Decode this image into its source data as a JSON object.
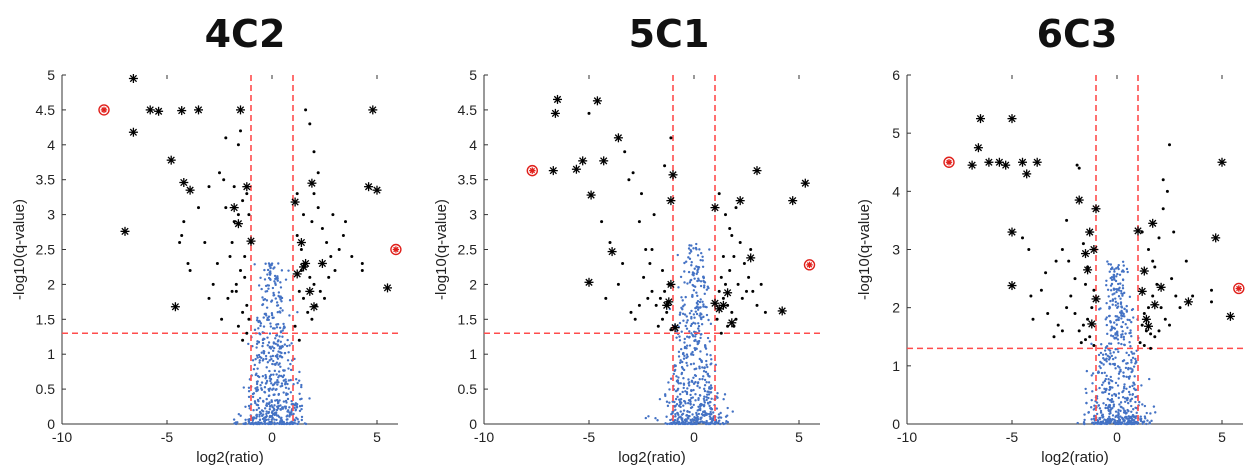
{
  "chart_data": [
    {
      "type": "scatter",
      "title": "4C2",
      "xlabel": "log2(ratio)",
      "ylabel": "-log10(q-value)",
      "xlim": [
        -10,
        6
      ],
      "ylim": [
        0,
        5
      ],
      "xticks": [
        "-10",
        "-5",
        "0",
        "5"
      ],
      "yticks": [
        "0",
        "0.5",
        "1",
        "1.5",
        "2",
        "2.5",
        "3",
        "3.5",
        "4",
        "4.5",
        "5"
      ],
      "threshold_lines": {
        "x": [
          -1,
          1
        ],
        "y": 1.3,
        "color": "#ff4d4d"
      },
      "colors": {
        "background": "#4472c4",
        "significant": "#000000",
        "highlight": "#e0201b"
      },
      "background_cloud": {
        "x_center": 0,
        "y_max": 2.3,
        "n": 600,
        "seed": 11
      },
      "significant_dots": [
        [
          -1.2,
          3.3
        ],
        [
          -1.4,
          3.2
        ],
        [
          -1.6,
          3.0
        ],
        [
          -1.8,
          2.9
        ],
        [
          -2.2,
          3.1
        ],
        [
          -1.0,
          2.6
        ],
        [
          -1.3,
          2.4
        ],
        [
          -1.5,
          2.2
        ],
        [
          -1.7,
          2.0
        ],
        [
          -1.9,
          1.9
        ],
        [
          -2.1,
          1.8
        ],
        [
          -1.2,
          1.7
        ],
        [
          -1.4,
          1.6
        ],
        [
          -1.1,
          1.5
        ],
        [
          -1.6,
          1.4
        ],
        [
          -2.4,
          1.5
        ],
        [
          -2.6,
          2.3
        ],
        [
          -2.8,
          2.0
        ],
        [
          -3.0,
          1.8
        ],
        [
          -3.2,
          2.6
        ],
        [
          -4.0,
          2.3
        ],
        [
          -3.9,
          2.2
        ],
        [
          -4.2,
          2.9
        ],
        [
          -4.3,
          2.7
        ],
        [
          -4.4,
          2.6
        ],
        [
          -2.2,
          4.1
        ],
        [
          -1.5,
          4.2
        ],
        [
          -1.6,
          4.0
        ],
        [
          -2.5,
          3.6
        ],
        [
          -2.3,
          3.5
        ],
        [
          -1.8,
          3.4
        ],
        [
          -3.0,
          3.4
        ],
        [
          -3.5,
          3.1
        ],
        [
          -1.1,
          3.0
        ],
        [
          -1.3,
          2.1
        ],
        [
          -1.9,
          2.6
        ],
        [
          -2.0,
          2.4
        ],
        [
          -1.2,
          1.3
        ],
        [
          -1.4,
          1.2
        ],
        [
          -1.7,
          1.9
        ],
        [
          1.2,
          2.7
        ],
        [
          1.4,
          2.5
        ],
        [
          1.6,
          2.3
        ],
        [
          1.8,
          2.1
        ],
        [
          2.0,
          2.0
        ],
        [
          1.3,
          1.9
        ],
        [
          1.5,
          1.8
        ],
        [
          1.7,
          1.6
        ],
        [
          1.9,
          1.5
        ],
        [
          2.1,
          1.7
        ],
        [
          2.3,
          1.9
        ],
        [
          1.1,
          1.4
        ],
        [
          1.2,
          3.3
        ],
        [
          1.5,
          3.0
        ],
        [
          2.0,
          3.3
        ],
        [
          2.2,
          3.1
        ],
        [
          2.4,
          2.8
        ],
        [
          2.6,
          2.6
        ],
        [
          2.8,
          2.4
        ],
        [
          3.0,
          2.2
        ],
        [
          3.2,
          2.5
        ],
        [
          3.4,
          2.7
        ],
        [
          1.6,
          4.5
        ],
        [
          1.8,
          4.3
        ],
        [
          2.0,
          3.9
        ],
        [
          2.2,
          3.6
        ],
        [
          1.4,
          2.2
        ],
        [
          1.3,
          1.2
        ],
        [
          2.5,
          1.8
        ],
        [
          2.7,
          2.1
        ],
        [
          3.5,
          2.9
        ],
        [
          4.3,
          2.3
        ],
        [
          4.3,
          2.2
        ],
        [
          1.9,
          2.9
        ],
        [
          2.9,
          3.0
        ],
        [
          3.8,
          2.4
        ]
      ],
      "significant_stars": [
        [
          -6.6,
          4.95
        ],
        [
          -5.8,
          4.5
        ],
        [
          -5.4,
          4.48
        ],
        [
          -4.3,
          4.49
        ],
        [
          -3.5,
          4.5
        ],
        [
          -1.5,
          4.5
        ],
        [
          -6.6,
          4.18
        ],
        [
          -4.8,
          3.78
        ],
        [
          -4.2,
          3.46
        ],
        [
          -3.9,
          3.35
        ],
        [
          -7.0,
          2.76
        ],
        [
          -4.6,
          1.68
        ],
        [
          -1.2,
          3.4
        ],
        [
          -1.8,
          3.1
        ],
        [
          -1.6,
          2.87
        ],
        [
          -1.0,
          2.62
        ],
        [
          1.1,
          3.18
        ],
        [
          1.9,
          3.45
        ],
        [
          1.4,
          2.6
        ],
        [
          1.2,
          2.15
        ],
        [
          1.6,
          2.3
        ],
        [
          2.4,
          2.3
        ],
        [
          1.8,
          1.9
        ],
        [
          2.0,
          1.68
        ],
        [
          4.8,
          4.5
        ],
        [
          4.6,
          3.4
        ],
        [
          5.0,
          3.35
        ],
        [
          5.5,
          1.95
        ],
        [
          1.5,
          2.25
        ]
      ],
      "highlight_points": [
        [
          -8.0,
          4.5
        ],
        [
          5.9,
          2.5
        ]
      ]
    },
    {
      "type": "scatter",
      "title": "5C1",
      "xlabel": "log2(ratio)",
      "ylabel": "-log10(q-value)",
      "xlim": [
        -10,
        6
      ],
      "ylim": [
        0,
        5
      ],
      "xticks": [
        "-10",
        "-5",
        "0",
        "5"
      ],
      "yticks": [
        "0",
        "0.5",
        "1",
        "1.5",
        "2",
        "2.5",
        "3",
        "3.5",
        "4",
        "4.5",
        "5"
      ],
      "threshold_lines": {
        "x": [
          -1,
          1
        ],
        "y": 1.3,
        "color": "#ff4d4d"
      },
      "colors": {
        "background": "#4472c4",
        "significant": "#000000",
        "highlight": "#e0201b"
      },
      "background_cloud": {
        "x_center": 0,
        "y_max": 2.6,
        "n": 600,
        "seed": 23
      },
      "significant_dots": [
        [
          -1.2,
          2.0
        ],
        [
          -1.4,
          1.9
        ],
        [
          -1.6,
          1.8
        ],
        [
          -1.8,
          1.7
        ],
        [
          -2.0,
          1.9
        ],
        [
          -2.2,
          1.8
        ],
        [
          -2.4,
          2.1
        ],
        [
          -1.3,
          1.6
        ],
        [
          -1.5,
          1.5
        ],
        [
          -1.7,
          1.4
        ],
        [
          -1.1,
          1.35
        ],
        [
          -2.6,
          1.7
        ],
        [
          -2.8,
          1.5
        ],
        [
          -3.0,
          1.6
        ],
        [
          -2.1,
          2.3
        ],
        [
          -2.3,
          2.5
        ],
        [
          -3.4,
          2.3
        ],
        [
          -3.6,
          2.0
        ],
        [
          -4.2,
          1.8
        ],
        [
          -4.0,
          2.6
        ],
        [
          -4.4,
          2.9
        ],
        [
          -5.0,
          4.45
        ],
        [
          -3.3,
          3.9
        ],
        [
          -2.9,
          3.6
        ],
        [
          -3.1,
          3.5
        ],
        [
          -2.5,
          3.3
        ],
        [
          -1.9,
          3.0
        ],
        [
          -2.6,
          2.9
        ],
        [
          -1.1,
          4.1
        ],
        [
          -1.4,
          3.7
        ],
        [
          -2.0,
          2.5
        ],
        [
          -1.5,
          2.2
        ],
        [
          1.2,
          1.9
        ],
        [
          1.4,
          1.8
        ],
        [
          1.6,
          1.7
        ],
        [
          1.8,
          1.6
        ],
        [
          2.0,
          1.5
        ],
        [
          1.3,
          2.1
        ],
        [
          1.5,
          2.0
        ],
        [
          1.7,
          2.2
        ],
        [
          1.9,
          2.4
        ],
        [
          2.1,
          2.0
        ],
        [
          2.3,
          1.8
        ],
        [
          2.5,
          1.9
        ],
        [
          1.1,
          1.5
        ],
        [
          1.2,
          3.3
        ],
        [
          1.5,
          3.0
        ],
        [
          1.7,
          2.8
        ],
        [
          2.0,
          3.1
        ],
        [
          2.2,
          2.6
        ],
        [
          2.4,
          2.3
        ],
        [
          2.6,
          2.1
        ],
        [
          2.8,
          1.9
        ],
        [
          3.0,
          1.7
        ],
        [
          3.2,
          2.0
        ],
        [
          1.3,
          1.3
        ],
        [
          1.6,
          1.4
        ],
        [
          1.8,
          2.7
        ],
        [
          2.7,
          2.5
        ],
        [
          3.4,
          1.6
        ],
        [
          1.4,
          2.4
        ],
        [
          1.9,
          1.4
        ]
      ],
      "significant_stars": [
        [
          -6.5,
          4.65
        ],
        [
          -4.6,
          4.63
        ],
        [
          -6.6,
          4.45
        ],
        [
          -3.6,
          4.1
        ],
        [
          -5.3,
          3.77
        ],
        [
          -4.3,
          3.77
        ],
        [
          -6.7,
          3.63
        ],
        [
          -5.6,
          3.65
        ],
        [
          -4.9,
          3.28
        ],
        [
          -1.0,
          3.57
        ],
        [
          -1.1,
          3.2
        ],
        [
          -3.9,
          2.47
        ],
        [
          -5.0,
          2.03
        ],
        [
          -1.1,
          2.0
        ],
        [
          -1.2,
          1.75
        ],
        [
          -0.9,
          1.38
        ],
        [
          -1.3,
          1.7
        ],
        [
          1.0,
          3.1
        ],
        [
          2.2,
          3.2
        ],
        [
          3.0,
          3.63
        ],
        [
          5.3,
          3.45
        ],
        [
          4.7,
          3.2
        ],
        [
          2.7,
          2.38
        ],
        [
          1.6,
          1.88
        ],
        [
          1.0,
          1.73
        ],
        [
          1.2,
          1.65
        ],
        [
          4.2,
          1.62
        ],
        [
          1.8,
          1.45
        ],
        [
          1.4,
          1.7
        ]
      ],
      "highlight_points": [
        [
          -7.7,
          3.63
        ],
        [
          5.5,
          2.28
        ]
      ]
    },
    {
      "type": "scatter",
      "title": "6C3",
      "xlabel": "log2(ratio)",
      "ylabel": "-log10(q-value)",
      "xlim": [
        -10,
        6
      ],
      "ylim": [
        0,
        6
      ],
      "xticks": [
        "-10",
        "-5",
        "0",
        "5"
      ],
      "yticks": [
        "0",
        "1",
        "2",
        "3",
        "4",
        "5",
        "6"
      ],
      "threshold_lines": {
        "x": [
          -1,
          1
        ],
        "y": 1.3,
        "color": "#ff4d4d"
      },
      "colors": {
        "background": "#4472c4",
        "significant": "#000000",
        "highlight": "#e0201b"
      },
      "background_cloud": {
        "x_center": 0,
        "y_max": 2.8,
        "n": 600,
        "seed": 37
      },
      "significant_dots": [
        [
          -1.2,
          2.0
        ],
        [
          -1.4,
          1.8
        ],
        [
          -1.6,
          1.7
        ],
        [
          -1.8,
          1.6
        ],
        [
          -2.0,
          1.9
        ],
        [
          -2.2,
          2.2
        ],
        [
          -2.4,
          2.0
        ],
        [
          -1.3,
          1.5
        ],
        [
          -1.5,
          1.45
        ],
        [
          -1.7,
          1.4
        ],
        [
          -1.1,
          1.35
        ],
        [
          -2.6,
          1.6
        ],
        [
          -2.8,
          1.7
        ],
        [
          -3.0,
          1.5
        ],
        [
          -2.0,
          2.5
        ],
        [
          -2.3,
          2.8
        ],
        [
          -3.4,
          2.6
        ],
        [
          -3.6,
          2.3
        ],
        [
          -4.1,
          2.2
        ],
        [
          -4.2,
          3.0
        ],
        [
          -4.5,
          3.2
        ],
        [
          -1.8,
          4.4
        ],
        [
          -1.9,
          4.45
        ],
        [
          -2.4,
          3.5
        ],
        [
          -2.6,
          3.0
        ],
        [
          -2.9,
          2.8
        ],
        [
          -1.4,
          2.7
        ],
        [
          -1.6,
          3.1
        ],
        [
          -3.3,
          1.9
        ],
        [
          -4.0,
          1.8
        ],
        [
          -1.1,
          2.3
        ],
        [
          -1.5,
          2.4
        ],
        [
          1.2,
          1.7
        ],
        [
          1.4,
          1.6
        ],
        [
          1.6,
          1.55
        ],
        [
          1.8,
          1.5
        ],
        [
          2.0,
          1.6
        ],
        [
          1.3,
          1.9
        ],
        [
          1.5,
          2.0
        ],
        [
          1.7,
          2.2
        ],
        [
          1.9,
          2.4
        ],
        [
          2.1,
          2.0
        ],
        [
          2.3,
          1.8
        ],
        [
          2.5,
          1.7
        ],
        [
          1.1,
          1.4
        ],
        [
          1.2,
          3.3
        ],
        [
          1.5,
          3.0
        ],
        [
          1.7,
          2.8
        ],
        [
          2.0,
          3.2
        ],
        [
          2.2,
          3.7
        ],
        [
          2.4,
          4.0
        ],
        [
          2.5,
          4.8
        ],
        [
          2.2,
          4.2
        ],
        [
          2.6,
          2.5
        ],
        [
          2.8,
          2.2
        ],
        [
          3.0,
          2.0
        ],
        [
          3.3,
          2.8
        ],
        [
          1.3,
          1.35
        ],
        [
          1.6,
          1.3
        ],
        [
          1.8,
          2.7
        ],
        [
          2.7,
          3.3
        ],
        [
          3.6,
          2.2
        ],
        [
          4.5,
          2.1
        ],
        [
          4.5,
          2.3
        ]
      ],
      "significant_stars": [
        [
          -6.5,
          5.25
        ],
        [
          -5.0,
          5.25
        ],
        [
          -6.6,
          4.75
        ],
        [
          -6.9,
          4.45
        ],
        [
          -6.1,
          4.5
        ],
        [
          -5.6,
          4.5
        ],
        [
          -5.3,
          4.45
        ],
        [
          -4.5,
          4.5
        ],
        [
          -3.8,
          4.5
        ],
        [
          -4.3,
          4.3
        ],
        [
          -5.0,
          3.3
        ],
        [
          -5.0,
          2.38
        ],
        [
          -1.8,
          3.85
        ],
        [
          -1.0,
          3.7
        ],
        [
          -1.3,
          3.3
        ],
        [
          -1.1,
          3.0
        ],
        [
          -1.4,
          2.65
        ],
        [
          -1.5,
          2.93
        ],
        [
          -1.0,
          2.15
        ],
        [
          -1.2,
          1.72
        ],
        [
          1.0,
          3.32
        ],
        [
          1.7,
          3.45
        ],
        [
          1.3,
          2.63
        ],
        [
          2.1,
          2.35
        ],
        [
          1.2,
          2.28
        ],
        [
          1.8,
          2.05
        ],
        [
          1.4,
          1.8
        ],
        [
          1.5,
          1.68
        ],
        [
          3.4,
          2.1
        ],
        [
          4.7,
          3.2
        ],
        [
          5.0,
          4.5
        ],
        [
          5.4,
          1.85
        ]
      ],
      "highlight_points": [
        [
          -8.0,
          4.5
        ],
        [
          5.8,
          2.33
        ]
      ]
    }
  ]
}
